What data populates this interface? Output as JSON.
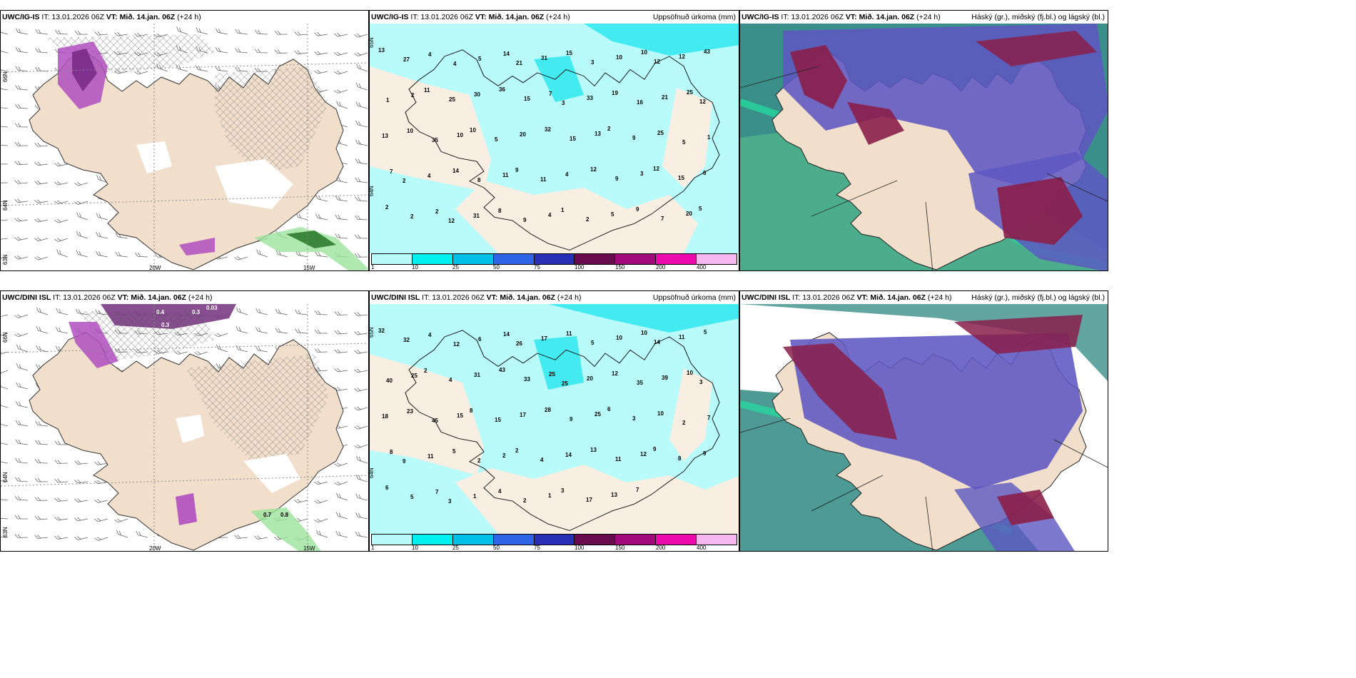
{
  "colors": {
    "land": "#f1dfcc",
    "sea_light": "#b9fbfb",
    "accent_purple": "#b04fc0",
    "white": "#ffffff"
  },
  "rows": [
    {
      "model": "UWC/IG-IS",
      "panels": [
        {
          "model": "UWC/IG-IS",
          "it_label": "IT:",
          "it_time": "13.01.2026 06Z",
          "vt_label": "VT:",
          "vt_time": "Mið. 14.jan. 06Z",
          "lead": "(+24 h)",
          "right_title": "",
          "lon_labels": [
            "20W",
            "15W"
          ],
          "lat_labels": [
            "66N",
            "64N",
            "63N"
          ]
        },
        {
          "model": "UWC/IG-IS",
          "it_label": "IT:",
          "it_time": "13.01.2026 06Z",
          "vt_label": "VT:",
          "vt_time": "Mið. 14.jan. 06Z",
          "lead": "(+24 h)",
          "right_title": "Uppsöfnuð úrkoma (mm)",
          "lat_labels": [
            "65N",
            "64N"
          ],
          "values": [
            "13",
            "27",
            "4",
            "4",
            "5",
            "14",
            "21",
            "31",
            "15",
            "3",
            "10",
            "10",
            "12",
            "12",
            "43",
            "1",
            "2",
            "11",
            "25",
            "30",
            "36",
            "15",
            "7",
            "3",
            "33",
            "19",
            "16",
            "21",
            "25",
            "12",
            "13",
            "10",
            "35",
            "10",
            "10",
            "5",
            "20",
            "32",
            "15",
            "13",
            "2",
            "9",
            "25",
            "5",
            "1",
            "7",
            "2",
            "4",
            "14",
            "8",
            "11",
            "9",
            "11",
            "4",
            "12",
            "9",
            "3",
            "12",
            "15",
            "6",
            "2",
            "2",
            "2",
            "12",
            "31",
            "8",
            "9",
            "4",
            "1",
            "2",
            "5",
            "9",
            "7",
            "20",
            "5"
          ]
        },
        {
          "model": "UWC/IG-IS",
          "it_label": "IT:",
          "it_time": "13.01.2026 06Z",
          "vt_label": "VT:",
          "vt_time": "Mið. 14.jan. 06Z",
          "lead": "(+24 h)",
          "right_title": "Háský (gr.), miðský (fj.bl.) og lágský (bl.)"
        }
      ]
    },
    {
      "model": "UWC/DINI ISL",
      "panels": [
        {
          "model": "UWC/DINI ISL",
          "it_label": "IT:",
          "it_time": "13.01.2026 06Z",
          "vt_label": "VT:",
          "vt_time": "Mið. 14.jan. 06Z",
          "lead": "(+24 h)",
          "right_title": "",
          "lon_labels": [
            "20W",
            "15W"
          ],
          "lat_labels": [
            "66N",
            "64N",
            "63N"
          ],
          "contour_values": [
            "0.4",
            "0.3",
            "0.03",
            "0.3",
            "0.7",
            "0.8"
          ]
        },
        {
          "model": "UWC/DINI ISL",
          "it_label": "IT:",
          "it_time": "13.01.2026 06Z",
          "vt_label": "VT:",
          "vt_time": "Mið. 14.jan. 06Z",
          "lead": "(+24 h)",
          "right_title": "Uppsöfnuð úrkoma (mm)",
          "lat_labels": [
            "65N",
            "64N"
          ],
          "values": [
            "32",
            "32",
            "4",
            "12",
            "6",
            "14",
            "26",
            "17",
            "11",
            "5",
            "10",
            "10",
            "14",
            "11",
            "5",
            "40",
            "25",
            "2",
            "4",
            "31",
            "43",
            "33",
            "25",
            "25",
            "20",
            "12",
            "35",
            "39",
            "10",
            "3",
            "18",
            "23",
            "45",
            "15",
            "8",
            "15",
            "17",
            "28",
            "9",
            "25",
            "6",
            "3",
            "10",
            "2",
            "7",
            "8",
            "9",
            "11",
            "5",
            "2",
            "2",
            "2",
            "4",
            "14",
            "13",
            "11",
            "12",
            "9",
            "8",
            "9",
            "6",
            "5",
            "7",
            "3",
            "1",
            "4",
            "2",
            "1",
            "3",
            "17",
            "13",
            "7"
          ]
        },
        {
          "model": "UWC/DINI ISL",
          "it_label": "IT:",
          "it_time": "13.01.2026 06Z",
          "vt_label": "VT:",
          "vt_time": "Mið. 14.jan. 06Z",
          "lead": "(+24 h)",
          "right_title": "Háský (gr.), miðský (fj.bl.) og lágský (bl.)"
        }
      ]
    }
  ],
  "precip_legend": {
    "colors": [
      "#b9fbfb",
      "#00f0f0",
      "#00bfe8",
      "#2f64e6",
      "#2a2fb8",
      "#6a0a4e",
      "#a00a7a",
      "#ec0aac",
      "#f7b8f2"
    ],
    "ticks": [
      "1",
      "10",
      "25",
      "50",
      "75",
      "100",
      "150",
      "200",
      "400"
    ]
  }
}
